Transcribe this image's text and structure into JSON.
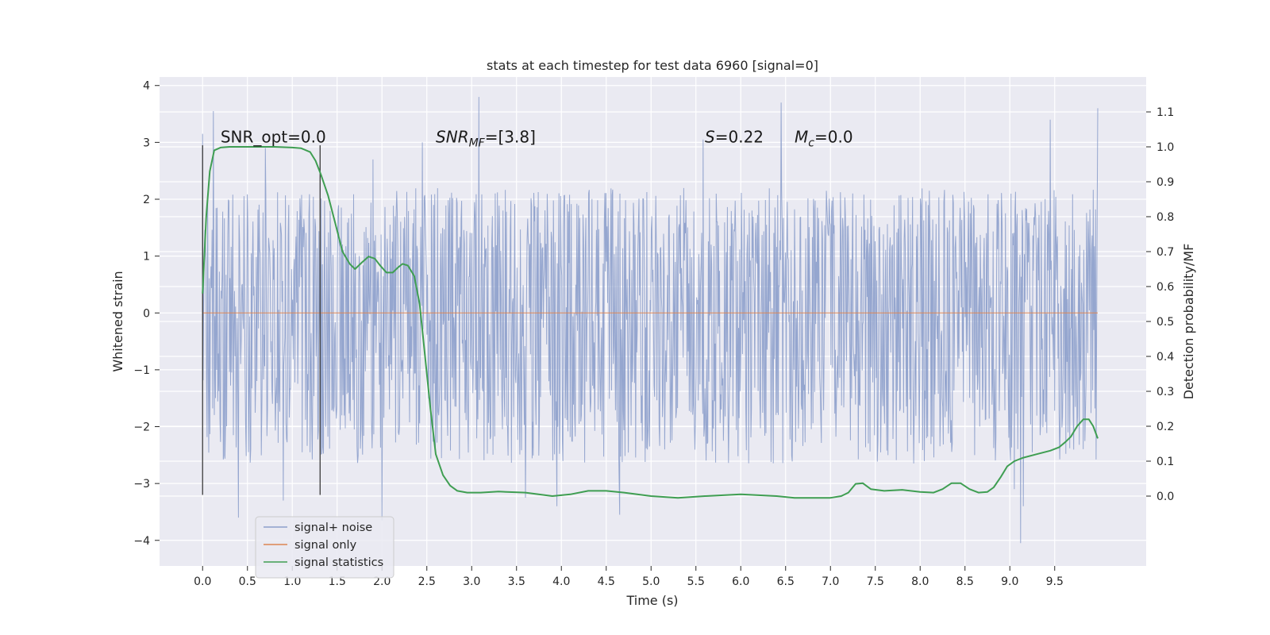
{
  "chart_data": {
    "type": "line",
    "title": "stats at each timestep for test data 6960 [signal=0]",
    "xlabel": "Time (s)",
    "ylabel": "Whitened strain",
    "y2label": "Detection probability/MF",
    "xlim": [
      -0.48,
      10.52
    ],
    "ylim": [
      -4.45,
      4.15
    ],
    "y2lim": [
      -0.2,
      1.2
    ],
    "x_ticks": [
      0.0,
      0.5,
      1.0,
      1.5,
      2.0,
      2.5,
      3.0,
      3.5,
      4.0,
      4.5,
      5.0,
      5.5,
      6.0,
      6.5,
      7.0,
      7.5,
      8.0,
      8.5,
      9.0,
      9.5
    ],
    "x_tick_labels": [
      "0.0",
      "0.5",
      "1.0",
      "1.5",
      "2.0",
      "2.5",
      "3.0",
      "3.5",
      "4.0",
      "4.5",
      "5.0",
      "5.5",
      "6.0",
      "6.5",
      "7.0",
      "7.5",
      "8.0",
      "8.5",
      "9.0",
      "9.5"
    ],
    "y_ticks": [
      -4,
      -3,
      -2,
      -1,
      0,
      1,
      2,
      3,
      4
    ],
    "y_tick_labels": [
      "−4",
      "−3",
      "−2",
      "−1",
      "0",
      "1",
      "2",
      "3",
      "4"
    ],
    "y2_ticks": [
      0.0,
      0.1,
      0.2,
      0.3,
      0.4,
      0.5,
      0.6,
      0.7,
      0.8,
      0.9,
      1.0,
      1.1
    ],
    "y2_tick_labels": [
      "0.0",
      "0.1",
      "0.2",
      "0.3",
      "0.4",
      "0.5",
      "0.6",
      "0.7",
      "0.8",
      "0.9",
      "1.0",
      "1.1"
    ],
    "grid": true,
    "legend_position": "lower-left",
    "series": [
      {
        "name": "signal+ noise",
        "color": "#8c9fcb",
        "axis": "left",
        "x_range": [
          0.0,
          9.98
        ],
        "typical_band": [
          -1.35,
          1.1
        ],
        "peak_max": [
          [
            0.0,
            3.15
          ],
          [
            0.12,
            3.55
          ],
          [
            0.7,
            2.9
          ],
          [
            1.9,
            2.7
          ],
          [
            2.45,
            3.0
          ],
          [
            3.08,
            3.8
          ],
          [
            5.58,
            3.05
          ],
          [
            6.45,
            3.7
          ],
          [
            9.45,
            3.4
          ],
          [
            9.98,
            3.6
          ]
        ],
        "peak_min": [
          [
            0.9,
            -3.3
          ],
          [
            0.4,
            -3.6
          ],
          [
            2.0,
            -3.65
          ],
          [
            3.6,
            -3.25
          ],
          [
            3.95,
            -3.4
          ],
          [
            4.65,
            -3.55
          ],
          [
            9.05,
            -3.1
          ],
          [
            9.12,
            -4.05
          ],
          [
            9.15,
            -3.4
          ]
        ]
      },
      {
        "name": "signal only",
        "color": "#dd8452",
        "axis": "left",
        "x": [
          0.0,
          9.98
        ],
        "values": [
          0.0,
          0.0
        ]
      },
      {
        "name": "signal statistics",
        "color": "#3f9e52",
        "axis": "right",
        "x": [
          0.0,
          0.04,
          0.08,
          0.13,
          0.2,
          0.3,
          0.5,
          0.8,
          1.0,
          1.1,
          1.2,
          1.26,
          1.32,
          1.4,
          1.48,
          1.56,
          1.64,
          1.7,
          1.78,
          1.85,
          1.92,
          1.98,
          2.05,
          2.12,
          2.18,
          2.23,
          2.29,
          2.36,
          2.42,
          2.48,
          2.54,
          2.6,
          2.68,
          2.76,
          2.84,
          2.95,
          3.1,
          3.3,
          3.6,
          3.9,
          4.1,
          4.3,
          4.5,
          4.7,
          5.0,
          5.3,
          5.6,
          6.0,
          6.4,
          6.6,
          6.8,
          7.0,
          7.12,
          7.2,
          7.28,
          7.36,
          7.45,
          7.6,
          7.8,
          8.0,
          8.15,
          8.25,
          8.35,
          8.45,
          8.55,
          8.65,
          8.75,
          8.82,
          8.9,
          8.97,
          9.05,
          9.15,
          9.3,
          9.45,
          9.55,
          9.62,
          9.68,
          9.75,
          9.82,
          9.88,
          9.93,
          9.98
        ],
        "values": [
          0.58,
          0.8,
          0.93,
          0.99,
          0.998,
          1.0,
          1.0,
          1.0,
          0.998,
          0.996,
          0.985,
          0.96,
          0.92,
          0.86,
          0.78,
          0.7,
          0.665,
          0.65,
          0.67,
          0.686,
          0.68,
          0.66,
          0.64,
          0.64,
          0.655,
          0.665,
          0.66,
          0.63,
          0.55,
          0.4,
          0.25,
          0.12,
          0.06,
          0.03,
          0.015,
          0.01,
          0.01,
          0.013,
          0.01,
          0.0,
          0.005,
          0.015,
          0.015,
          0.01,
          0.0,
          -0.005,
          0.0,
          0.005,
          0.0,
          -0.005,
          -0.005,
          -0.005,
          0.0,
          0.01,
          0.035,
          0.037,
          0.02,
          0.015,
          0.018,
          0.012,
          0.01,
          0.02,
          0.037,
          0.037,
          0.02,
          0.01,
          0.012,
          0.025,
          0.055,
          0.085,
          0.1,
          0.11,
          0.12,
          0.13,
          0.14,
          0.155,
          0.17,
          0.2,
          0.22,
          0.22,
          0.2,
          0.165
        ]
      }
    ],
    "vertical_lines": [
      {
        "x": 0.0,
        "y_from": -3.2,
        "y_to": 2.95
      },
      {
        "x": 1.31,
        "y_from": -3.2,
        "y_to": 2.95
      }
    ],
    "annotations": [
      {
        "x": 0.2,
        "y": 3.0,
        "text": "SNR_opt=0.0",
        "italic": false
      },
      {
        "x": 2.6,
        "y": 3.0,
        "text": "SNR_MF=[3.8]",
        "italic": true
      },
      {
        "x": 5.6,
        "y": 3.0,
        "text": "S=0.22",
        "italic": true
      },
      {
        "x": 6.6,
        "y": 3.0,
        "text": "M_c=0.0",
        "italic": true
      }
    ]
  }
}
